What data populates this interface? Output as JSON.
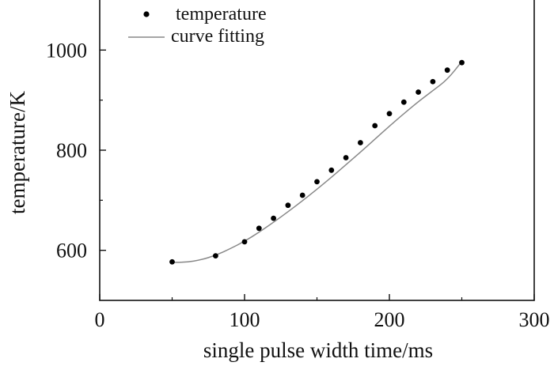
{
  "chart_data": {
    "type": "scatter",
    "title": "",
    "xlabel": "single pulse width time/ms",
    "ylabel": "temperature/K",
    "xlim": [
      0,
      300
    ],
    "ylim": [
      500,
      1100
    ],
    "xticks": [
      "0",
      "100",
      "200",
      "300"
    ],
    "yticks": [
      "600",
      "800",
      "1000"
    ],
    "grid": false,
    "legend_position": "top-left",
    "series": [
      {
        "name": "temperature",
        "kind": "scatter",
        "marker": "filled-circle",
        "color": "#000000",
        "x": [
          50,
          80,
          100,
          110,
          120,
          130,
          140,
          150,
          160,
          170,
          180,
          190,
          200,
          210,
          220,
          230,
          240,
          250
        ],
        "y": [
          577,
          589,
          617,
          644,
          664,
          690,
          710,
          737,
          760,
          785,
          815,
          849,
          873,
          896,
          916,
          937,
          960,
          975
        ]
      },
      {
        "name": "curve fitting",
        "kind": "line",
        "color": "#888888",
        "x": [
          50,
          60,
          70,
          80,
          90,
          100,
          110,
          120,
          130,
          140,
          150,
          160,
          170,
          180,
          190,
          200,
          210,
          220,
          230,
          240,
          250
        ],
        "y": [
          576,
          576,
          581,
          590,
          603,
          618,
          636,
          656,
          677,
          699,
          722,
          746,
          771,
          796,
          822,
          848,
          873,
          897,
          919,
          941,
          977
        ]
      }
    ]
  }
}
